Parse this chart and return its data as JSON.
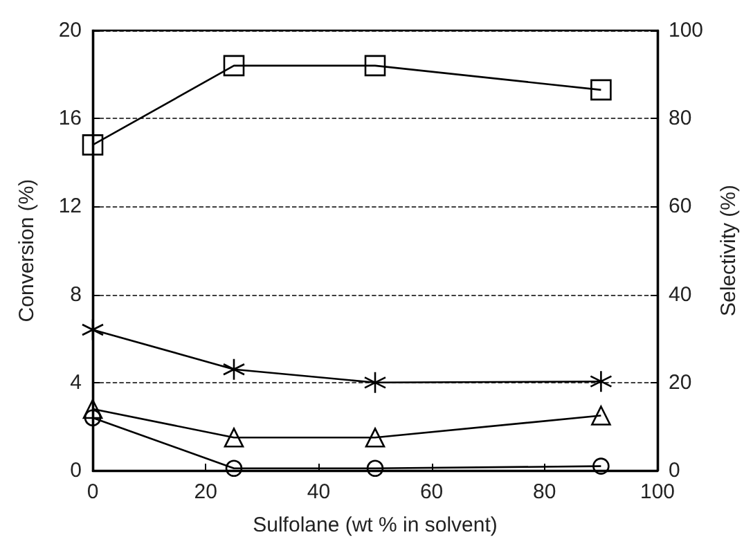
{
  "chart_data": {
    "type": "line",
    "xlabel": "Sulfolane (wt % in solvent)",
    "ylabel": "Conversion (%)",
    "y2label": "Selectivity (%)",
    "x": [
      0,
      25,
      50,
      90
    ],
    "xlim": [
      0,
      100
    ],
    "xticks": [
      0,
      20,
      40,
      60,
      80,
      100
    ],
    "ylim": [
      0,
      20
    ],
    "yticks": [
      0,
      4,
      8,
      12,
      16,
      20
    ],
    "y2lim": [
      0,
      100
    ],
    "y2ticks": [
      0,
      20,
      40,
      60,
      80,
      100
    ],
    "grid": "y",
    "legend": false,
    "line_style": "solid",
    "series": [
      {
        "color": "#000000",
        "marker": "square",
        "axis": "y2",
        "values": [
          74,
          92,
          92,
          86.5
        ]
      },
      {
        "color": "#000000",
        "marker": "cross",
        "values": [
          6.4,
          4.6,
          4.0,
          4.05
        ]
      },
      {
        "color": "#000000",
        "marker": "triangle",
        "values": [
          2.8,
          1.5,
          1.5,
          2.5
        ]
      },
      {
        "color": "#000000",
        "marker": "circle",
        "values": [
          2.4,
          0.1,
          0.1,
          0.2
        ]
      }
    ]
  }
}
